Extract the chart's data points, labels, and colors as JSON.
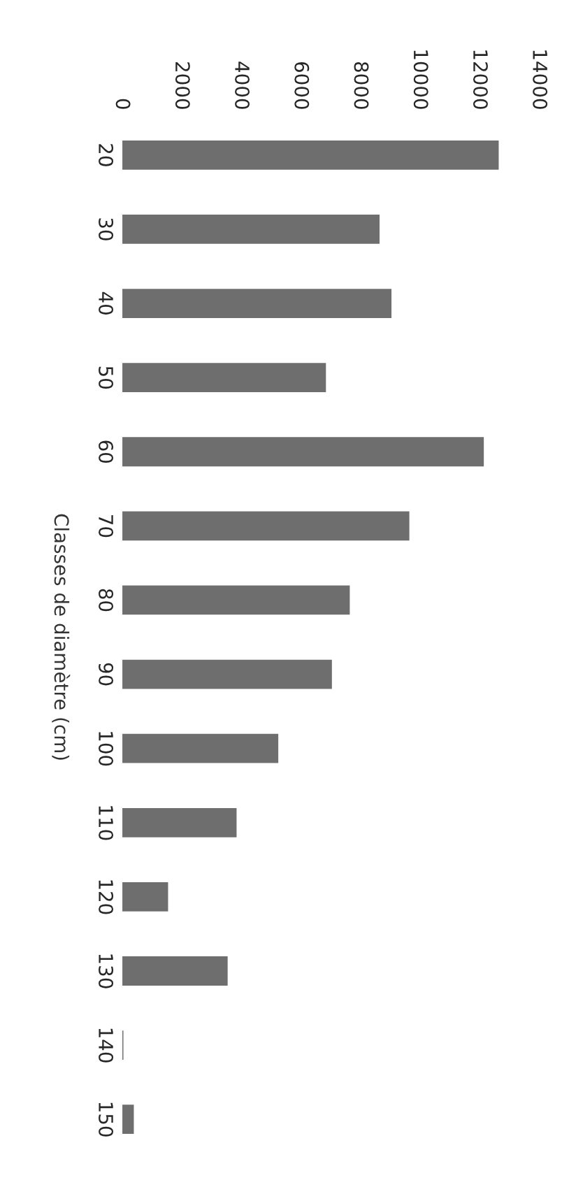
{
  "chart_data": {
    "type": "bar",
    "orientation": "horizontal",
    "ylabel": "Classes de diamètre (cm)",
    "categories": [
      "20",
      "30",
      "40",
      "50",
      "60",
      "70",
      "80",
      "90",
      "100",
      "110",
      "120",
      "130",
      "140",
      "150"
    ],
    "values": [
      12700,
      8700,
      9100,
      6900,
      12200,
      9700,
      7700,
      7100,
      5300,
      3900,
      1600,
      3600,
      100,
      450
    ],
    "color": "#6e6e6e",
    "xlim": [
      0,
      14000
    ],
    "xticks": [
      0,
      2000,
      4000,
      6000,
      8000,
      10000,
      12000,
      14000
    ],
    "grid": false
  }
}
